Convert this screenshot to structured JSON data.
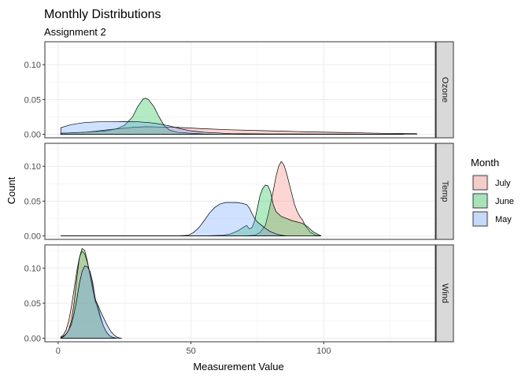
{
  "chart_data": {
    "type": "area",
    "kind": "density",
    "title": "Monthly Distributions",
    "subtitle": "Assignment 2",
    "xlabel": "Measurement Value",
    "ylabel": "Count",
    "xlim": [
      -5,
      142
    ],
    "xticks": [
      0,
      50,
      100
    ],
    "ylim": [
      -0.005,
      0.133
    ],
    "yticks": [
      0.0,
      0.05,
      0.1
    ],
    "ytick_labels": [
      "0.00",
      "0.05",
      "0.10"
    ],
    "grid": true,
    "legend": {
      "title": "Month",
      "placement": "right",
      "items": [
        {
          "label": "July",
          "color": "#F8766D"
        },
        {
          "label": "June",
          "color": "#00BA38"
        },
        {
          "label": "May",
          "color": "#619CFF"
        }
      ]
    },
    "facets": [
      {
        "label": "Ozone",
        "series": [
          {
            "name": "July",
            "color": "#F8766D",
            "points": [
              [
                1,
                0.0015
              ],
              [
                10,
                0.003
              ],
              [
                20,
                0.007
              ],
              [
                28,
                0.01
              ],
              [
                33,
                0.011
              ],
              [
                38,
                0.0105
              ],
              [
                45,
                0.01
              ],
              [
                55,
                0.008
              ],
              [
                65,
                0.0065
              ],
              [
                75,
                0.0055
              ],
              [
                85,
                0.0045
              ],
              [
                95,
                0.0035
              ],
              [
                105,
                0.0028
              ],
              [
                115,
                0.002
              ],
              [
                125,
                0.0013
              ],
              [
                135,
                0.001
              ]
            ]
          },
          {
            "name": "June",
            "color": "#00BA38",
            "points": [
              [
                1,
                0.0015
              ],
              [
                10,
                0.003
              ],
              [
                18,
                0.005
              ],
              [
                22,
                0.008
              ],
              [
                25,
                0.013
              ],
              [
                28,
                0.025
              ],
              [
                30,
                0.04
              ],
              [
                32,
                0.051
              ],
              [
                33,
                0.052
              ],
              [
                34,
                0.05
              ],
              [
                36,
                0.04
              ],
              [
                38,
                0.025
              ],
              [
                40,
                0.012
              ],
              [
                42,
                0.006
              ],
              [
                45,
                0.003
              ],
              [
                50,
                0.0015
              ],
              [
                55,
                0.0005
              ],
              [
                60,
                0.0001
              ]
            ]
          },
          {
            "name": "May",
            "color": "#619CFF",
            "points": [
              [
                1,
                0.0095
              ],
              [
                5,
                0.014
              ],
              [
                10,
                0.017
              ],
              [
                15,
                0.018
              ],
              [
                20,
                0.018
              ],
              [
                25,
                0.0185
              ],
              [
                30,
                0.018
              ],
              [
                34,
                0.017
              ],
              [
                38,
                0.015
              ],
              [
                42,
                0.012
              ],
              [
                46,
                0.008
              ],
              [
                50,
                0.005
              ],
              [
                55,
                0.003
              ],
              [
                60,
                0.002
              ],
              [
                65,
                0.001
              ],
              [
                70,
                0.0008
              ],
              [
                80,
                0.0006
              ],
              [
                90,
                0.0005
              ],
              [
                100,
                0.0004
              ],
              [
                110,
                0.0004
              ],
              [
                120,
                0.0002
              ],
              [
                130,
                0.0001
              ]
            ]
          }
        ]
      },
      {
        "label": "Temp",
        "series": [
          {
            "name": "July",
            "color": "#F8766D",
            "points": [
              [
                1,
                0
              ],
              [
                55,
                0
              ],
              [
                70,
                0
              ],
              [
                74,
                0.001
              ],
              [
                76,
                0.005
              ],
              [
                78,
                0.015
              ],
              [
                79,
                0.03
              ],
              [
                80,
                0.047
              ],
              [
                81,
                0.065
              ],
              [
                82,
                0.085
              ],
              [
                83,
                0.1
              ],
              [
                84,
                0.107
              ],
              [
                85,
                0.102
              ],
              [
                86,
                0.09
              ],
              [
                87,
                0.075
              ],
              [
                88,
                0.06
              ],
              [
                89,
                0.045
              ],
              [
                90,
                0.035
              ],
              [
                91,
                0.028
              ],
              [
                92,
                0.023
              ],
              [
                93,
                0.015
              ],
              [
                95,
                0.005
              ],
              [
                97,
                0.001
              ],
              [
                99,
                0
              ]
            ]
          },
          {
            "name": "June",
            "color": "#00BA38",
            "points": [
              [
                1,
                0
              ],
              [
                55,
                0
              ],
              [
                62,
                0.001
              ],
              [
                65,
                0.003
              ],
              [
                68,
                0.008
              ],
              [
                70,
                0.013
              ],
              [
                71,
                0.015
              ],
              [
                72,
                0.01
              ],
              [
                73,
                0.012
              ],
              [
                74,
                0.022
              ],
              [
                75,
                0.04
              ],
              [
                76,
                0.058
              ],
              [
                77,
                0.068
              ],
              [
                78,
                0.073
              ],
              [
                79,
                0.072
              ],
              [
                80,
                0.063
              ],
              [
                81,
                0.045
              ],
              [
                82,
                0.035
              ],
              [
                84,
                0.028
              ],
              [
                86,
                0.025
              ],
              [
                88,
                0.022
              ],
              [
                90,
                0.02
              ],
              [
                92,
                0.018
              ],
              [
                94,
                0.013
              ],
              [
                96,
                0.006
              ],
              [
                98,
                0.002
              ],
              [
                99,
                0
              ]
            ]
          },
          {
            "name": "May",
            "color": "#619CFF",
            "points": [
              [
                1,
                0
              ],
              [
                45,
                0
              ],
              [
                49,
                0.001
              ],
              [
                51,
                0.005
              ],
              [
                53,
                0.012
              ],
              [
                55,
                0.022
              ],
              [
                57,
                0.033
              ],
              [
                59,
                0.041
              ],
              [
                61,
                0.046
              ],
              [
                63,
                0.048
              ],
              [
                65,
                0.048
              ],
              [
                67,
                0.048
              ],
              [
                69,
                0.047
              ],
              [
                71,
                0.045
              ],
              [
                72,
                0.04
              ],
              [
                73,
                0.032
              ],
              [
                74,
                0.025
              ],
              [
                75,
                0.02
              ],
              [
                76,
                0.017
              ],
              [
                77,
                0.014
              ],
              [
                78,
                0.011
              ],
              [
                80,
                0.006
              ],
              [
                82,
                0.003
              ],
              [
                84,
                0.001
              ],
              [
                86,
                0
              ]
            ]
          }
        ]
      },
      {
        "label": "Wind",
        "series": [
          {
            "name": "July",
            "color": "#F8766D",
            "points": [
              [
                1,
                0.002
              ],
              [
                2,
                0.005
              ],
              [
                3,
                0.012
              ],
              [
                4,
                0.025
              ],
              [
                5,
                0.045
              ],
              [
                6,
                0.07
              ],
              [
                7,
                0.095
              ],
              [
                8,
                0.115
              ],
              [
                9,
                0.124
              ],
              [
                10,
                0.12
              ],
              [
                11,
                0.108
              ],
              [
                12,
                0.092
              ],
              [
                13,
                0.075
              ],
              [
                14,
                0.056
              ],
              [
                15,
                0.04
              ],
              [
                16,
                0.028
              ],
              [
                17,
                0.018
              ],
              [
                18,
                0.01
              ],
              [
                19,
                0.005
              ],
              [
                20,
                0.002
              ],
              [
                22,
                0
              ]
            ]
          },
          {
            "name": "June",
            "color": "#00BA38",
            "points": [
              [
                1,
                0.001
              ],
              [
                2,
                0.003
              ],
              [
                3,
                0.006
              ],
              [
                4,
                0.012
              ],
              [
                5,
                0.025
              ],
              [
                6,
                0.05
              ],
              [
                7,
                0.085
              ],
              [
                8,
                0.115
              ],
              [
                9,
                0.128
              ],
              [
                10,
                0.125
              ],
              [
                11,
                0.11
              ],
              [
                12,
                0.09
              ],
              [
                13,
                0.07
              ],
              [
                14,
                0.052
              ],
              [
                15,
                0.045
              ],
              [
                16,
                0.03
              ],
              [
                17,
                0.018
              ],
              [
                18,
                0.01
              ],
              [
                19,
                0.005
              ],
              [
                20,
                0.002
              ],
              [
                22,
                0
              ]
            ]
          },
          {
            "name": "May",
            "color": "#619CFF",
            "points": [
              [
                1,
                0.0005
              ],
              [
                2,
                0.002
              ],
              [
                3,
                0.006
              ],
              [
                4,
                0.012
              ],
              [
                5,
                0.02
              ],
              [
                6,
                0.035
              ],
              [
                7,
                0.055
              ],
              [
                8,
                0.078
              ],
              [
                9,
                0.095
              ],
              [
                10,
                0.103
              ],
              [
                11,
                0.102
              ],
              [
                12,
                0.095
              ],
              [
                13,
                0.08
              ],
              [
                14,
                0.055
              ],
              [
                15,
                0.047
              ],
              [
                16,
                0.038
              ],
              [
                17,
                0.03
              ],
              [
                18,
                0.022
              ],
              [
                19,
                0.015
              ],
              [
                20,
                0.009
              ],
              [
                21,
                0.005
              ],
              [
                22,
                0.002
              ],
              [
                23,
                0.0005
              ],
              [
                24,
                0
              ]
            ]
          }
        ]
      }
    ]
  }
}
